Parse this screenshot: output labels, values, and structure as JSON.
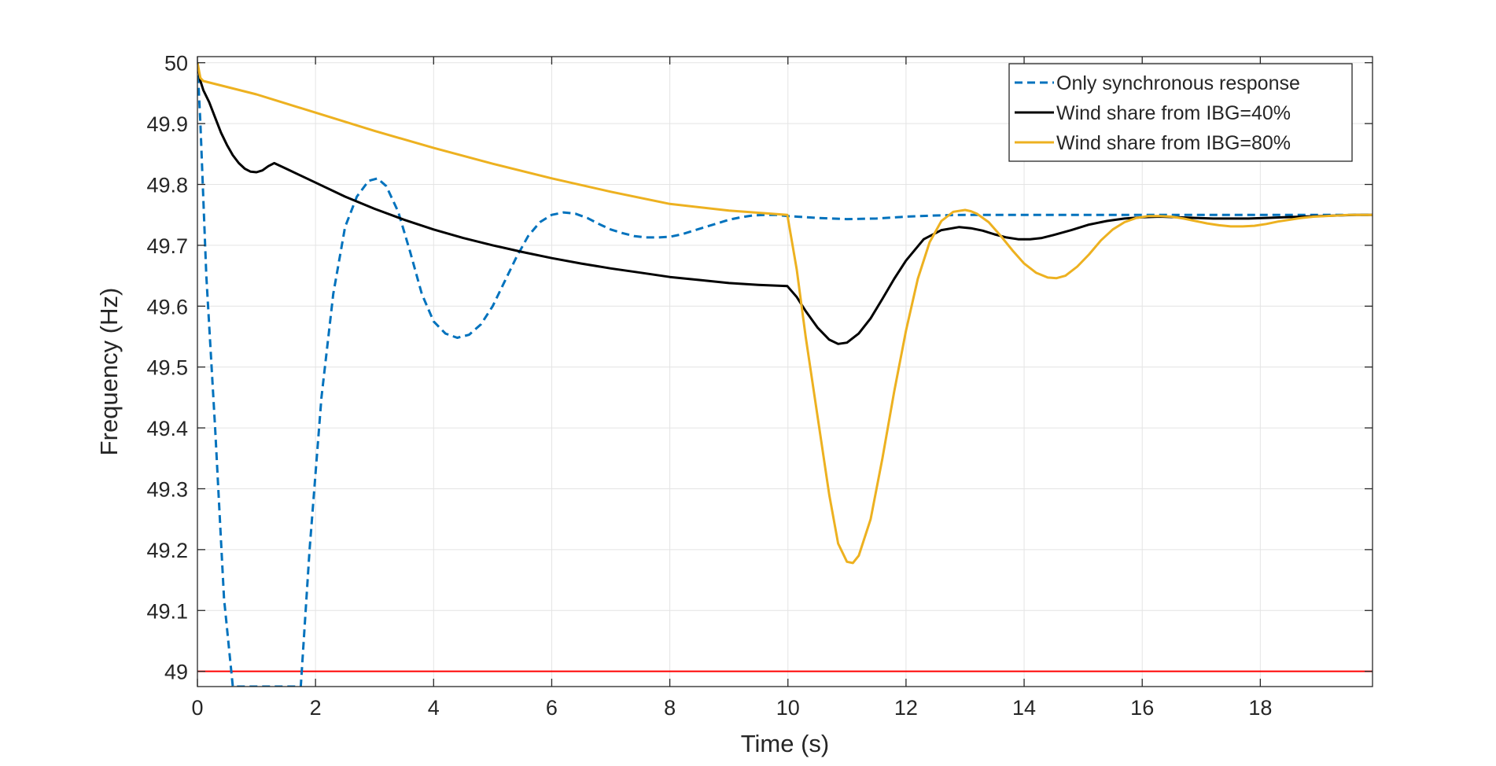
{
  "chart_data": {
    "type": "line",
    "title": "",
    "xlabel": "Time (s)",
    "ylabel": "Frequency (Hz)",
    "xlim": [
      0,
      19.9
    ],
    "ylim": [
      48.975,
      50.01
    ],
    "xticks": [
      0,
      2,
      4,
      6,
      8,
      10,
      12,
      14,
      16,
      18
    ],
    "yticks": [
      49,
      49.1,
      49.2,
      49.3,
      49.4,
      49.5,
      49.6,
      49.7,
      49.8,
      49.9,
      50
    ],
    "xtick_labels": [
      "0",
      "2",
      "4",
      "6",
      "8",
      "10",
      "12",
      "14",
      "16",
      "18"
    ],
    "ytick_labels": [
      "49",
      "49.1",
      "49.2",
      "49.3",
      "49.4",
      "49.5",
      "49.6",
      "49.7",
      "49.8",
      "49.9",
      "50"
    ],
    "grid": true,
    "legend_position": "top-right",
    "reference_line": {
      "y": 49.0,
      "color": "#FF0000"
    },
    "series": [
      {
        "name": "Only synchronous response",
        "color": "#0072BD",
        "dash": "dashed",
        "x": [
          0,
          0.05,
          0.15,
          0.3,
          0.45,
          0.6,
          1.75,
          1.9,
          2.1,
          2.3,
          2.5,
          2.7,
          2.9,
          3.05,
          3.2,
          3.4,
          3.6,
          3.8,
          4.0,
          4.2,
          4.4,
          4.6,
          4.8,
          5.0,
          5.2,
          5.4,
          5.6,
          5.8,
          6.0,
          6.2,
          6.4,
          6.6,
          6.8,
          7.0,
          7.2,
          7.4,
          7.6,
          7.8,
          8.0,
          8.2,
          8.4,
          8.6,
          8.8,
          9.0,
          9.2,
          9.4,
          9.6,
          9.8,
          10.0,
          10.5,
          11.0,
          11.5,
          12.0,
          12.5,
          13.0,
          14.0,
          15.0,
          16.0,
          17.0,
          18.0,
          19.0,
          19.9
        ],
        "y": [
          50.0,
          49.9,
          49.65,
          49.4,
          49.12,
          48.975,
          48.975,
          49.2,
          49.45,
          49.62,
          49.73,
          49.78,
          49.806,
          49.81,
          49.797,
          49.755,
          49.69,
          49.62,
          49.575,
          49.555,
          49.548,
          49.553,
          49.57,
          49.6,
          49.64,
          49.68,
          49.715,
          49.738,
          49.75,
          49.754,
          49.752,
          49.745,
          49.735,
          49.726,
          49.72,
          49.715,
          49.713,
          49.713,
          49.714,
          49.718,
          49.724,
          49.73,
          49.736,
          49.742,
          49.746,
          49.749,
          49.75,
          49.75,
          49.748,
          49.745,
          49.743,
          49.744,
          49.747,
          49.749,
          49.75,
          49.75,
          49.75,
          49.75,
          49.75,
          49.75,
          49.75,
          49.75
        ]
      },
      {
        "name": "Wind share from IBG=40%",
        "color": "#000000",
        "dash": "solid",
        "x": [
          0,
          0.05,
          0.1,
          0.2,
          0.3,
          0.4,
          0.5,
          0.6,
          0.7,
          0.8,
          0.9,
          1.0,
          1.1,
          1.2,
          1.3,
          1.5,
          2.0,
          2.5,
          3.0,
          3.5,
          4.0,
          4.5,
          5.0,
          5.5,
          6.0,
          6.5,
          7.0,
          7.5,
          8.0,
          8.5,
          9.0,
          9.5,
          9.99,
          10.15,
          10.3,
          10.5,
          10.7,
          10.85,
          11.0,
          11.2,
          11.4,
          11.6,
          11.8,
          12.0,
          12.3,
          12.6,
          12.9,
          13.1,
          13.3,
          13.5,
          13.7,
          13.9,
          14.1,
          14.3,
          14.5,
          14.8,
          15.1,
          15.4,
          15.7,
          16.0,
          16.3,
          16.6,
          16.9,
          17.2,
          17.5,
          17.8,
          18.1,
          18.4,
          18.7,
          19.0,
          19.3,
          19.6,
          19.9
        ],
        "y": [
          50.0,
          49.97,
          49.955,
          49.935,
          49.91,
          49.885,
          49.865,
          49.848,
          49.835,
          49.826,
          49.821,
          49.82,
          49.823,
          49.83,
          49.835,
          49.826,
          49.803,
          49.78,
          49.76,
          49.742,
          49.726,
          49.712,
          49.7,
          49.689,
          49.679,
          49.67,
          49.662,
          49.655,
          49.648,
          49.643,
          49.638,
          49.635,
          49.633,
          49.615,
          49.592,
          49.565,
          49.545,
          49.538,
          49.54,
          49.555,
          49.58,
          49.612,
          49.645,
          49.675,
          49.71,
          49.725,
          49.73,
          49.728,
          49.724,
          49.718,
          49.713,
          49.71,
          49.71,
          49.712,
          49.717,
          49.725,
          49.734,
          49.74,
          49.744,
          49.746,
          49.747,
          49.746,
          49.745,
          49.744,
          49.744,
          49.744,
          49.745,
          49.746,
          49.747,
          49.748,
          49.749,
          49.75,
          49.75
        ]
      },
      {
        "name": "Wind share from IBG=80%",
        "color": "#EDB120",
        "dash": "solid",
        "x": [
          0,
          0.05,
          0.1,
          1.0,
          2.0,
          3.0,
          4.0,
          5.0,
          6.0,
          7.0,
          8.0,
          9.0,
          9.99,
          10.15,
          10.3,
          10.5,
          10.7,
          10.85,
          11.0,
          11.1,
          11.2,
          11.4,
          11.6,
          11.8,
          12.0,
          12.2,
          12.4,
          12.6,
          12.8,
          13.0,
          13.1,
          13.2,
          13.4,
          13.6,
          13.8,
          14.0,
          14.2,
          14.4,
          14.55,
          14.7,
          14.9,
          15.1,
          15.3,
          15.5,
          15.7,
          15.9,
          16.1,
          16.3,
          16.5,
          16.7,
          16.9,
          17.1,
          17.3,
          17.5,
          17.7,
          17.9,
          18.1,
          18.3,
          18.5,
          18.7,
          18.9,
          19.1,
          19.3,
          19.5,
          19.7,
          19.9
        ],
        "y": [
          50.0,
          49.975,
          49.97,
          49.948,
          49.918,
          49.888,
          49.86,
          49.834,
          49.81,
          49.788,
          49.768,
          49.757,
          49.75,
          49.66,
          49.55,
          49.42,
          49.29,
          49.21,
          49.18,
          49.178,
          49.19,
          49.25,
          49.35,
          49.46,
          49.56,
          49.645,
          49.705,
          49.74,
          49.755,
          49.758,
          49.756,
          49.752,
          49.738,
          49.716,
          49.692,
          49.67,
          49.655,
          49.647,
          49.646,
          49.65,
          49.665,
          49.685,
          49.708,
          49.726,
          49.738,
          49.745,
          49.748,
          49.748,
          49.747,
          49.744,
          49.74,
          49.736,
          49.733,
          49.731,
          49.731,
          49.732,
          49.735,
          49.739,
          49.742,
          49.745,
          49.747,
          49.748,
          49.749,
          49.75,
          49.75,
          49.75
        ]
      }
    ]
  }
}
